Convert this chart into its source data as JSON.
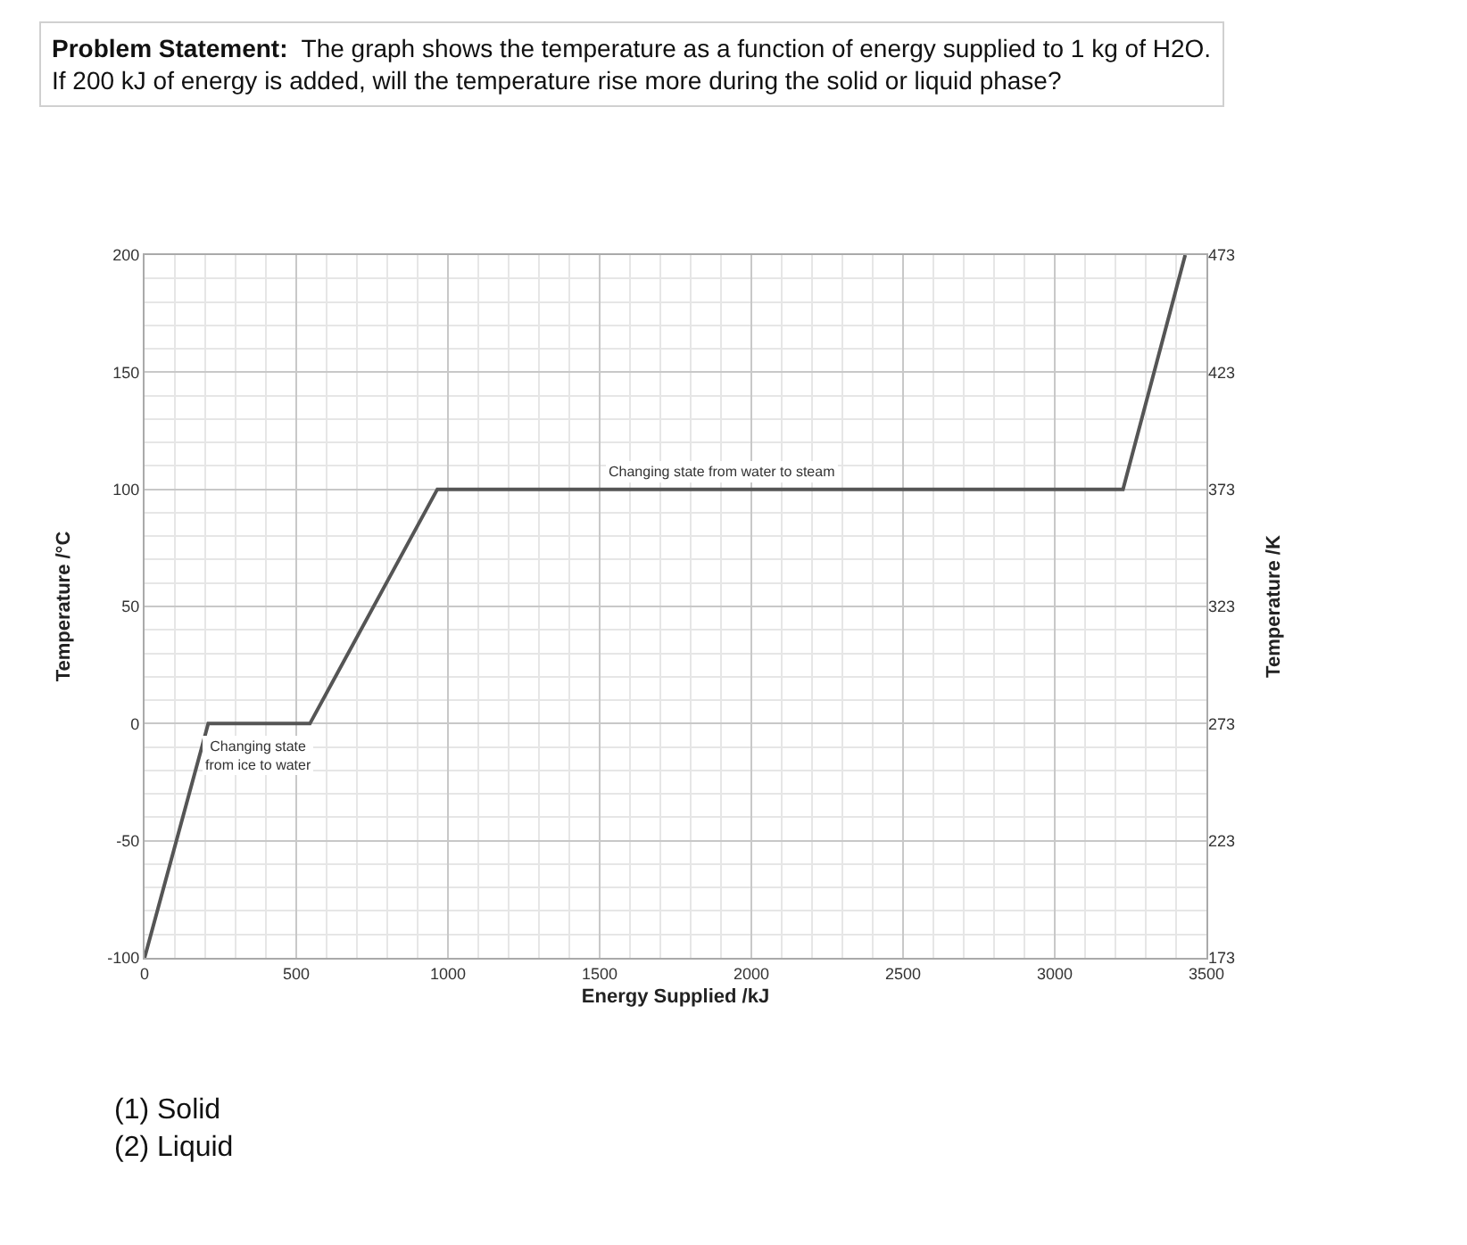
{
  "chart_data": {
    "type": "line",
    "title": "Problem Statement:",
    "subtitle": "The graph shows the temperature as a function of energy supplied to 1 kg of H2O.\nIf 200 kJ of energy is added, will the temperature rise more during the solid or liquid phase?",
    "xlabel": "Energy Supplied /kJ",
    "ylabel": "Temperature /°C",
    "y2label": "Temperature /K",
    "x": [
      0,
      210,
      545,
      965,
      3225,
      3430
    ],
    "series": [
      {
        "color": "#555555",
        "values": [
          -100,
          0,
          0,
          100,
          100,
          200
        ]
      }
    ],
    "xlim": [
      0,
      3500
    ],
    "xticks": [
      0,
      500,
      1000,
      1500,
      2000,
      2500,
      3000,
      3500
    ],
    "ylim": [
      -100,
      200
    ],
    "yticks": [
      -100,
      -50,
      0,
      50,
      100,
      150,
      200
    ],
    "y2lim": [
      173,
      473
    ],
    "y2ticks": [
      173,
      223,
      273,
      323,
      373,
      423,
      473
    ],
    "grid": true,
    "marker": "none",
    "line_style": "solid",
    "annotations": [
      {
        "text": "Changing state\nfrom ice to water",
        "x": 375,
        "y": 0
      },
      {
        "text": "Changing state from water to steam",
        "x": 1900,
        "y": 100
      },
      "(1) Solid\n(2) Liquid"
    ]
  }
}
